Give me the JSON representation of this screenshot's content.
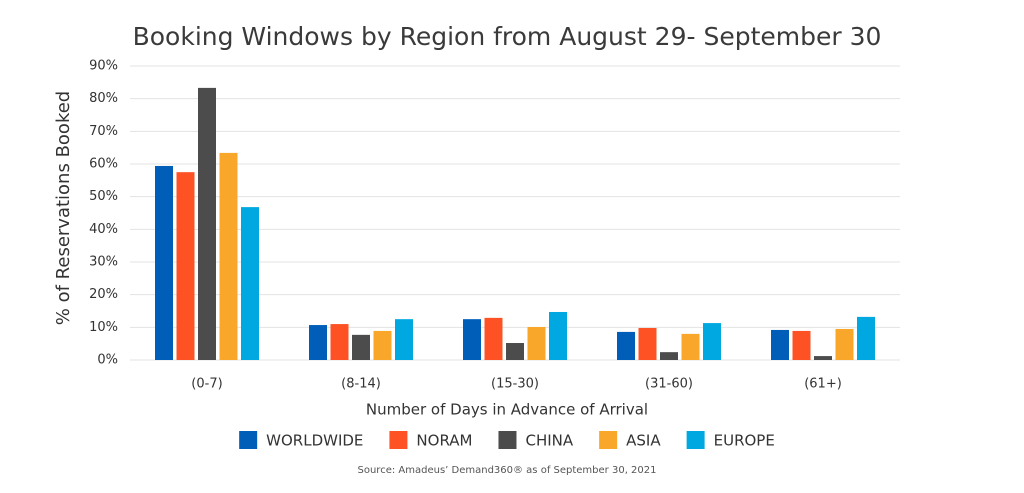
{
  "chart_data": {
    "type": "bar",
    "title": "Booking Windows by Region from August 29- September 30",
    "x_label": "Number of Days in Advance of Arrival",
    "y_label": "% of Reservations Booked",
    "source": "Source: Amadeus’ Demand360® as of September 30, 2021",
    "categories": [
      "(0-7)",
      "(8-14)",
      "(15-30)",
      "(31-60)",
      "(61+)"
    ],
    "series": [
      {
        "name": "WORLDWIDE",
        "color": "#005eb8",
        "values": [
          59.4,
          10.7,
          12.5,
          8.6,
          9.2
        ]
      },
      {
        "name": "NORAM",
        "color": "#ff5224",
        "values": [
          57.5,
          11.0,
          12.9,
          9.8,
          8.9
        ]
      },
      {
        "name": "CHINA",
        "color": "#4c4c4c",
        "values": [
          83.3,
          7.7,
          5.2,
          2.4,
          1.2
        ]
      },
      {
        "name": "ASIA",
        "color": "#f9a72b",
        "values": [
          63.4,
          8.9,
          10.1,
          8.0,
          9.5
        ]
      },
      {
        "name": "EUROPE",
        "color": "#00a8e1",
        "values": [
          46.8,
          12.5,
          14.7,
          11.3,
          13.2
        ]
      }
    ],
    "ylim": [
      0,
      90
    ],
    "yticks": [
      {
        "value": 0,
        "label": "0%"
      },
      {
        "value": 10,
        "label": "10%"
      },
      {
        "value": 20,
        "label": "20%"
      },
      {
        "value": 30,
        "label": "30%"
      },
      {
        "value": 40,
        "label": "40%"
      },
      {
        "value": 50,
        "label": "50%"
      },
      {
        "value": 60,
        "label": "60%"
      },
      {
        "value": 70,
        "label": "70%"
      },
      {
        "value": 80,
        "label": "80%"
      },
      {
        "value": 90,
        "label": "90%"
      }
    ],
    "grid": true,
    "legend": "bottom"
  }
}
